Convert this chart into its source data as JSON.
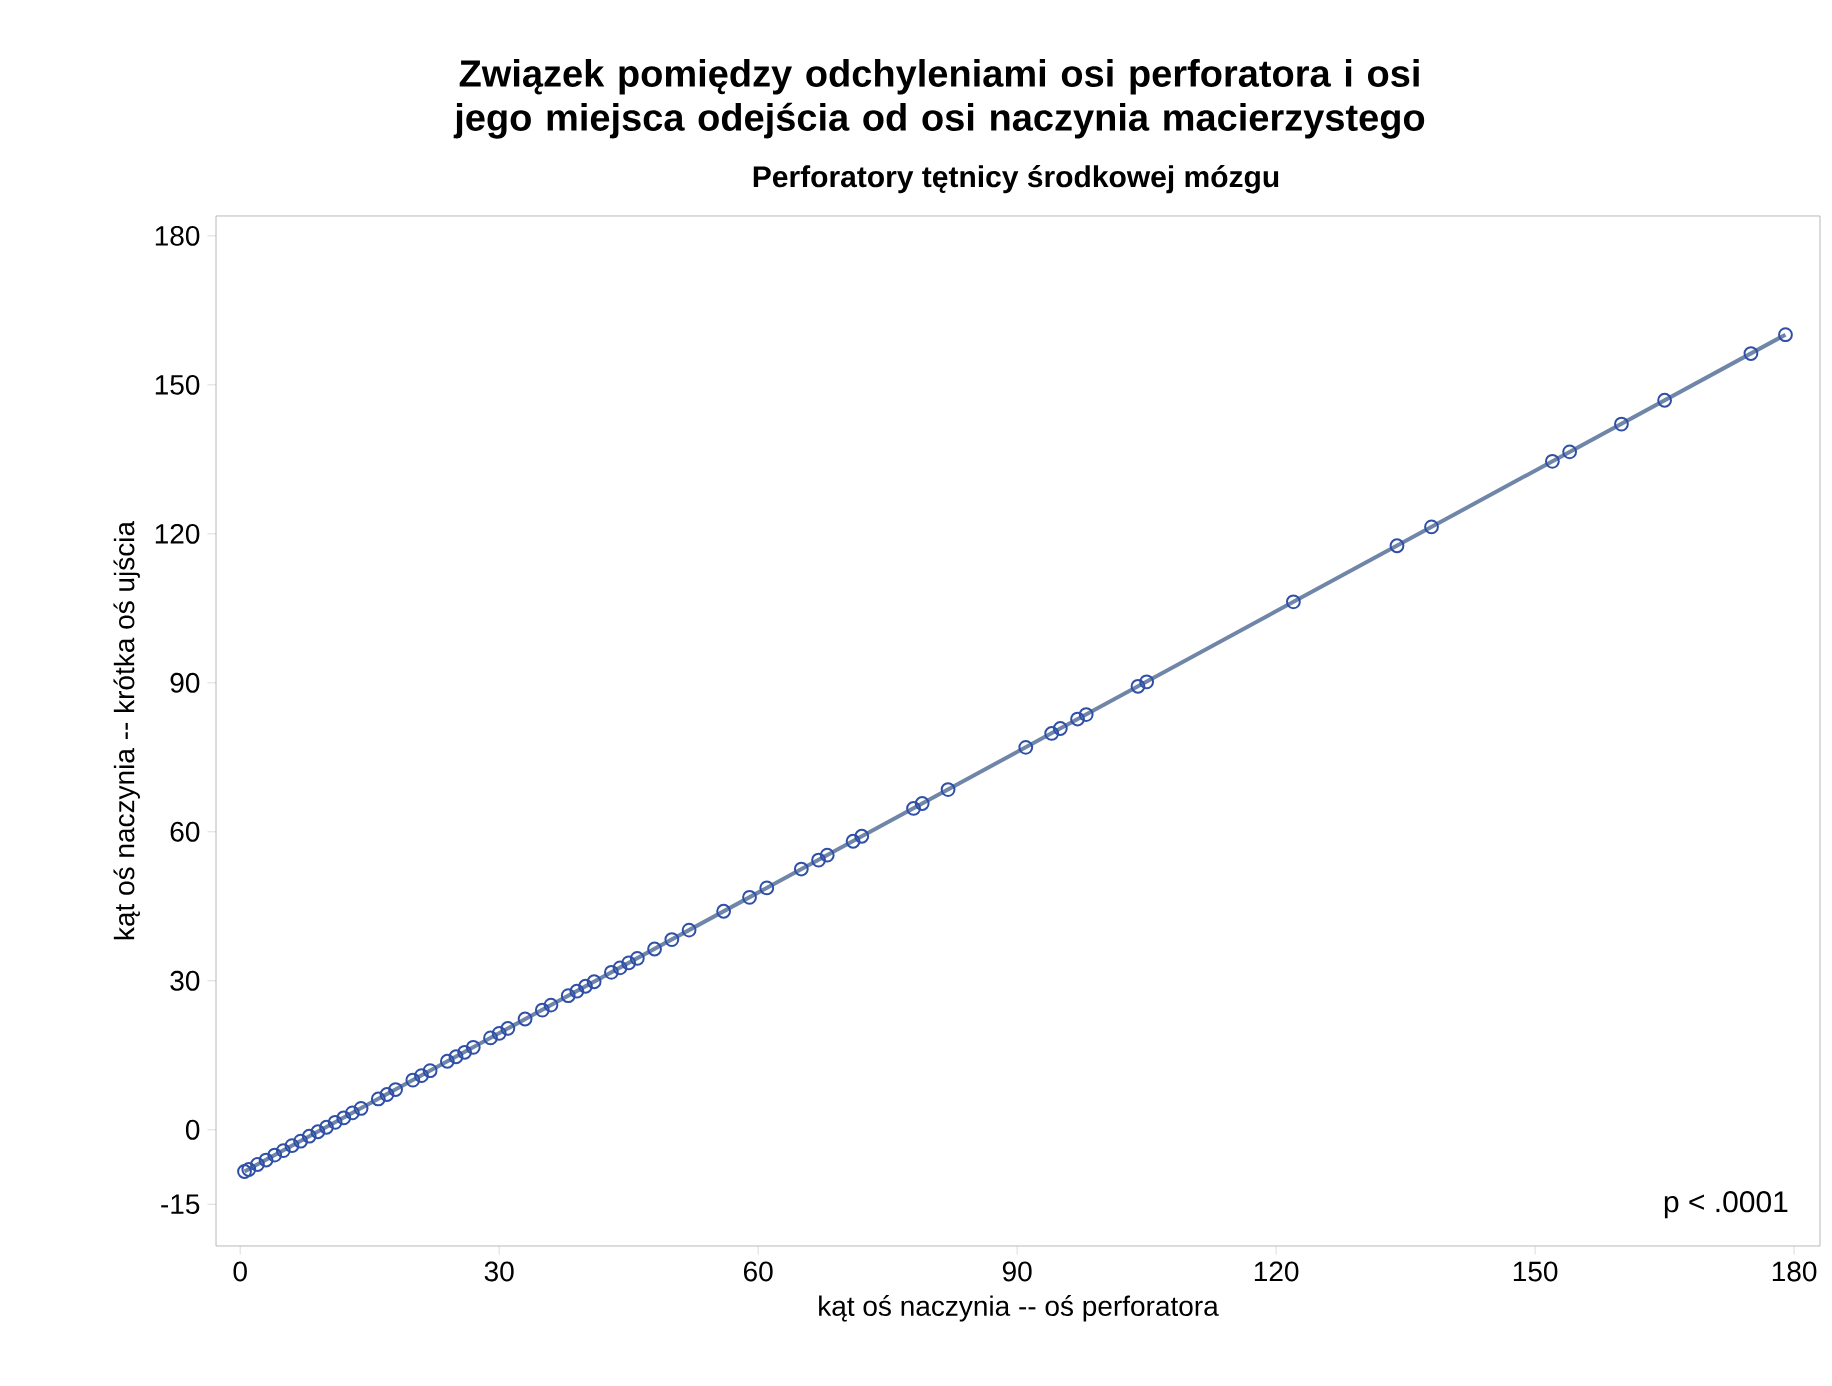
{
  "chart_data": {
    "type": "scatter",
    "title": "Związek pomiędzy odchyleniami osi perforatora i osi jego miejsca odejścia od osi naczynia macierzystego",
    "subtitle": "Perforatory tętnicy środkowej mózgu",
    "xlabel": "kąt oś naczynia -- oś perforatora",
    "ylabel": "kąt oś naczynia -- krótka oś ujścia",
    "xlim": [
      -2.8,
      183
    ],
    "ylim": [
      -23.4,
      184
    ],
    "xticks": [
      0,
      30,
      60,
      90,
      120,
      150,
      180
    ],
    "yticks": [
      -15,
      0,
      30,
      60,
      90,
      120,
      150,
      180
    ],
    "grid": false,
    "marker": "circle",
    "annotations": [
      "p < .0001"
    ],
    "series": [
      {
        "color": "#2f4fa8",
        "x": [
          0.5,
          1,
          2,
          3,
          4,
          5,
          6,
          7,
          8,
          9,
          10,
          11,
          12,
          13,
          14,
          16,
          17,
          18,
          20,
          21,
          22,
          24,
          25,
          26,
          27,
          29,
          30,
          31,
          33,
          35,
          36,
          38,
          39,
          40,
          41,
          43,
          44,
          45,
          46,
          48,
          50,
          52,
          56,
          59,
          61,
          65,
          67,
          68,
          71,
          72,
          78,
          79,
          82,
          91,
          94,
          95,
          97,
          98,
          104,
          105,
          122,
          134,
          138,
          152,
          154,
          160,
          165,
          175,
          179
        ],
        "values": [
          -8.4,
          -8.0,
          -7.0,
          -6.1,
          -5.1,
          -4.2,
          -3.2,
          -2.3,
          -1.3,
          -0.4,
          0.5,
          1.5,
          2.4,
          3.4,
          4.3,
          6.2,
          7.1,
          8.1,
          10.0,
          10.9,
          11.9,
          13.8,
          14.7,
          15.6,
          16.6,
          18.5,
          19.4,
          20.4,
          22.3,
          24.1,
          25.1,
          27.0,
          27.9,
          28.9,
          29.8,
          31.7,
          32.6,
          33.6,
          34.5,
          36.4,
          38.3,
          40.2,
          44.0,
          46.8,
          48.7,
          52.5,
          54.3,
          55.3,
          58.1,
          59.1,
          64.7,
          65.7,
          68.5,
          77.0,
          79.8,
          80.8,
          82.7,
          83.6,
          89.3,
          90.2,
          106.3,
          117.6,
          121.4,
          134.6,
          136.5,
          142.1,
          146.9,
          156.3,
          160.1
        ]
      },
      {
        "type": "line",
        "color": "#6f86a8",
        "marker": "none",
        "x": [
          0.5,
          179
        ],
        "values": [
          -8.4,
          160.1
        ]
      }
    ]
  }
}
